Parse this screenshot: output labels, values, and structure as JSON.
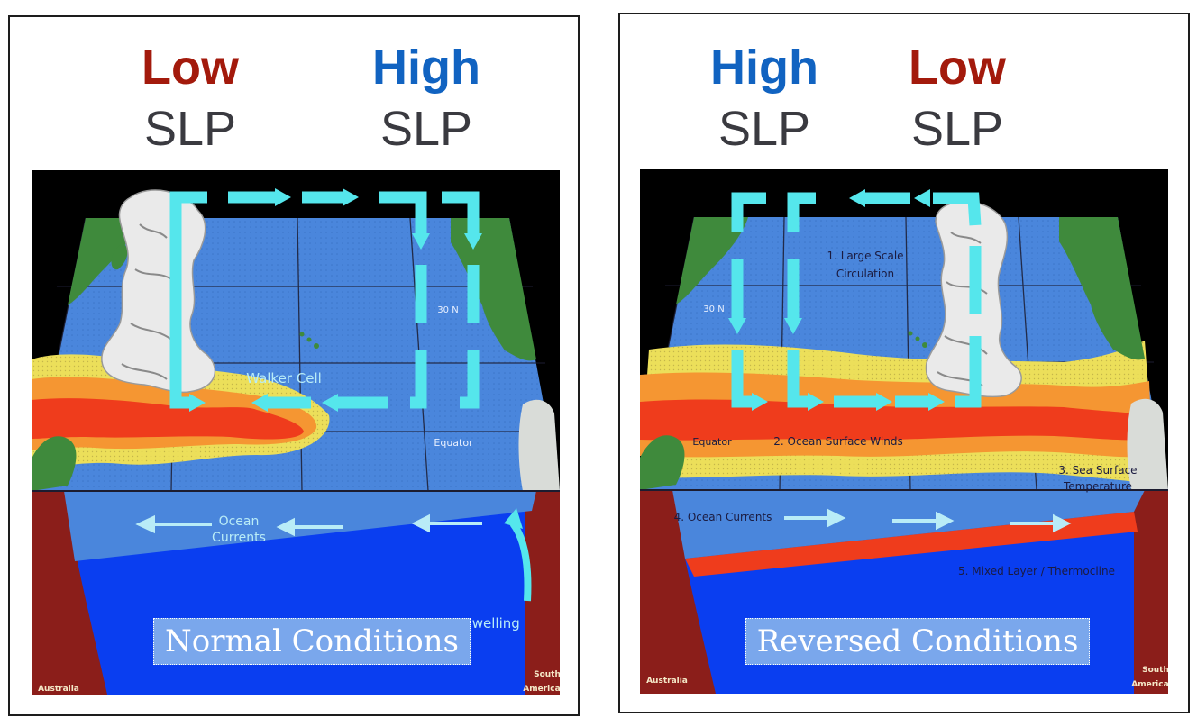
{
  "left": {
    "pressure_left": {
      "label": "Low",
      "unit": "SLP",
      "color": "#a31a0c"
    },
    "pressure_right": {
      "label": "High",
      "unit": "SLP",
      "color": "#1163c1"
    },
    "annotations": {
      "walker_cell": "Walker Cell",
      "lat_30n": "30 N",
      "equator": "Equator",
      "ocean_currents_line1": "Ocean",
      "ocean_currents_line2": "Currents",
      "upwelling": "Upwelling",
      "australia": "Australia",
      "south": "South",
      "america": "America"
    },
    "condition_label": "Normal Conditions"
  },
  "right": {
    "pressure_left": {
      "label": "High",
      "unit": "SLP",
      "color": "#1163c1"
    },
    "pressure_right": {
      "label": "Low",
      "unit": "SLP",
      "color": "#a31a0c"
    },
    "annotations": {
      "circulation_line1": "1. Large Scale",
      "circulation_line2": "Circulation",
      "lat_30n": "30 N",
      "equator": "Equator",
      "winds": "2. Ocean Surface Winds",
      "sst_line1": "3. Sea Surface",
      "sst_line2": "Temperature",
      "currents": "4. Ocean Currents",
      "thermocline": "5. Mixed Layer / Thermocline",
      "australia": "Australia",
      "south": "South",
      "america": "America"
    },
    "condition_label": "Reversed Conditions"
  },
  "colors": {
    "ocean_surface": "#4a86dc",
    "deep_ocean": "#0a3ef0",
    "land_cross_section": "#8b1e1a",
    "arrow": "#55e6ec",
    "warm_red": "#ef3c1c",
    "warm_orange": "#f59632",
    "warm_yellow": "#ecdf5a",
    "land_green": "#3f8a3c",
    "sky": "#000000"
  }
}
